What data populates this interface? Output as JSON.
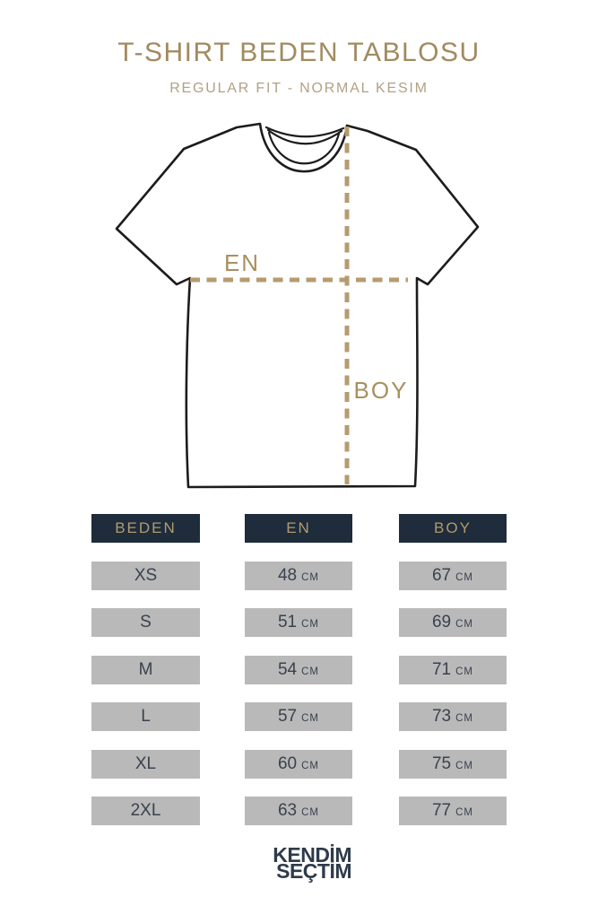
{
  "header": {
    "title": "T-SHIRT BEDEN TABLOSU",
    "subtitle": "REGULAR FIT - NORMAL KESIM"
  },
  "diagram": {
    "width_label": "EN",
    "length_label": "BOY"
  },
  "table": {
    "unit": "CM",
    "columns": [
      {
        "key": "beden",
        "label": "BEDEN",
        "unit": false
      },
      {
        "key": "en",
        "label": "EN",
        "unit": true
      },
      {
        "key": "boy",
        "label": "BOY",
        "unit": true
      }
    ],
    "rows": [
      {
        "beden": "XS",
        "en": "48",
        "boy": "67"
      },
      {
        "beden": "S",
        "en": "51",
        "boy": "69"
      },
      {
        "beden": "M",
        "en": "54",
        "boy": "71"
      },
      {
        "beden": "L",
        "en": "57",
        "boy": "73"
      },
      {
        "beden": "XL",
        "en": "60",
        "boy": "75"
      },
      {
        "beden": "2XL",
        "en": "63",
        "boy": "77"
      }
    ]
  },
  "footer": {
    "logo_line1": "KENDİM",
    "logo_line2": "SEÇTİM"
  },
  "colors": {
    "title_text": "#a18a5f",
    "subtitle_text": "#b2a184",
    "accent_dash": "#b69b70",
    "measure_label_text": "#a8905f",
    "table_header_bg": "#1e2c3b",
    "table_header_text": "#b29a6e",
    "table_cell_bg": "#b9b9b9",
    "table_cell_text": "#39424e",
    "logo_text": "#2e3b4a",
    "shirt_outline": "#1c1c1c"
  }
}
